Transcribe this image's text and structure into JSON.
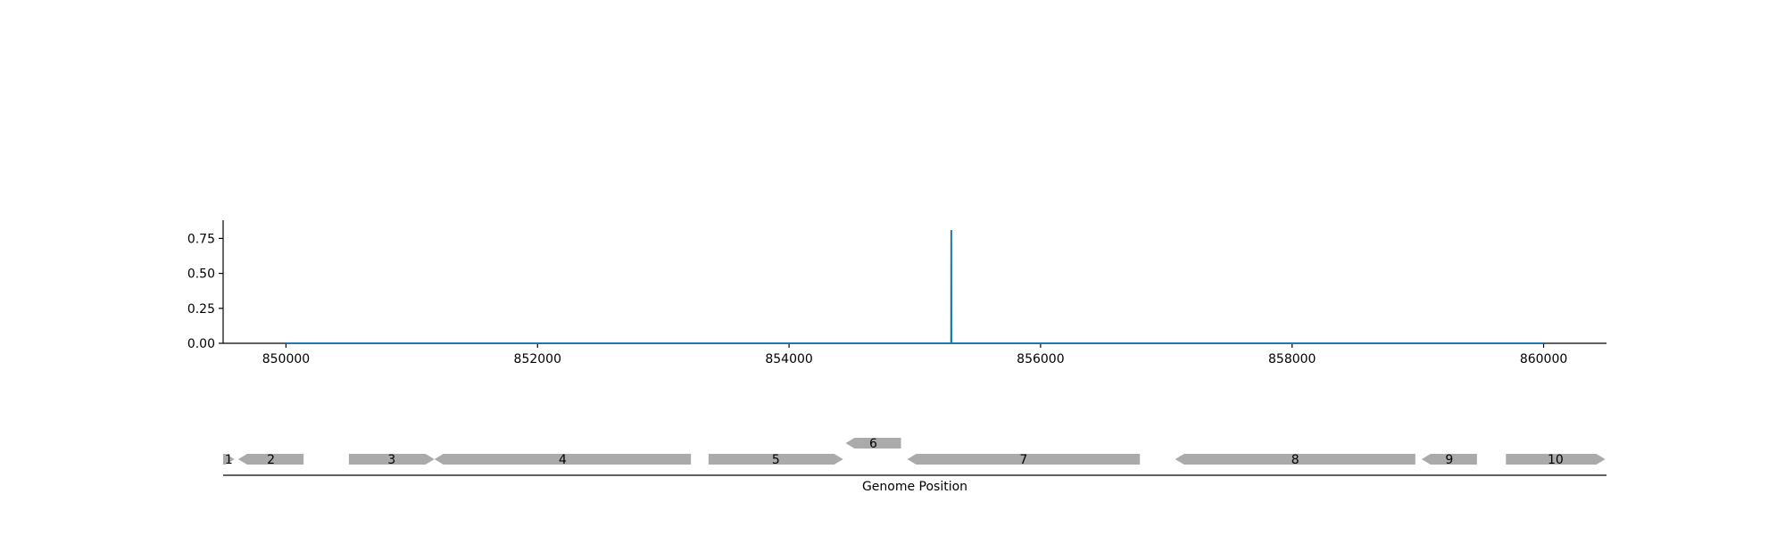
{
  "chart_data": [
    {
      "type": "line",
      "title": "",
      "xlabel": "",
      "ylabel": "",
      "xlim": [
        849500,
        860500
      ],
      "ylim": [
        0,
        0.88
      ],
      "x_ticks": [
        850000,
        852000,
        854000,
        856000,
        858000,
        860000
      ],
      "x_tick_labels": [
        "850000",
        "852000",
        "854000",
        "856000",
        "858000",
        "860000"
      ],
      "y_ticks": [
        0.0,
        0.25,
        0.5,
        0.75
      ],
      "y_tick_labels": [
        "0.00",
        "0.25",
        "0.50",
        "0.75"
      ],
      "grid": false,
      "legend": "none",
      "series": [
        {
          "color": "#1f77b4",
          "x": [
            850000,
            855289,
            855290,
            855291,
            860000
          ],
          "y": [
            0,
            0,
            0.81,
            0,
            0
          ]
        }
      ]
    },
    {
      "type": "gene-track",
      "xlabel": "Genome Position",
      "xlim": [
        849500,
        860500
      ],
      "color": "#aaaaaa",
      "genes": [
        {
          "label": "1",
          "start": 849500,
          "end": 849590,
          "strand": 1,
          "row": 0
        },
        {
          "label": "2",
          "start": 849620,
          "end": 850140,
          "strand": -1,
          "row": 0
        },
        {
          "label": "3",
          "start": 850500,
          "end": 851180,
          "strand": 1,
          "row": 0
        },
        {
          "label": "4",
          "start": 851180,
          "end": 853220,
          "strand": -1,
          "row": 0
        },
        {
          "label": "5",
          "start": 853360,
          "end": 854430,
          "strand": 1,
          "row": 0
        },
        {
          "label": "6",
          "start": 854450,
          "end": 854890,
          "strand": -1,
          "row": 1
        },
        {
          "label": "7",
          "start": 854940,
          "end": 856790,
          "strand": -1,
          "row": 0
        },
        {
          "label": "8",
          "start": 857070,
          "end": 858980,
          "strand": -1,
          "row": 0
        },
        {
          "label": "9",
          "start": 859030,
          "end": 859470,
          "strand": -1,
          "row": 0
        },
        {
          "label": "10",
          "start": 859700,
          "end": 860490,
          "strand": 1,
          "row": 0
        }
      ]
    }
  ]
}
